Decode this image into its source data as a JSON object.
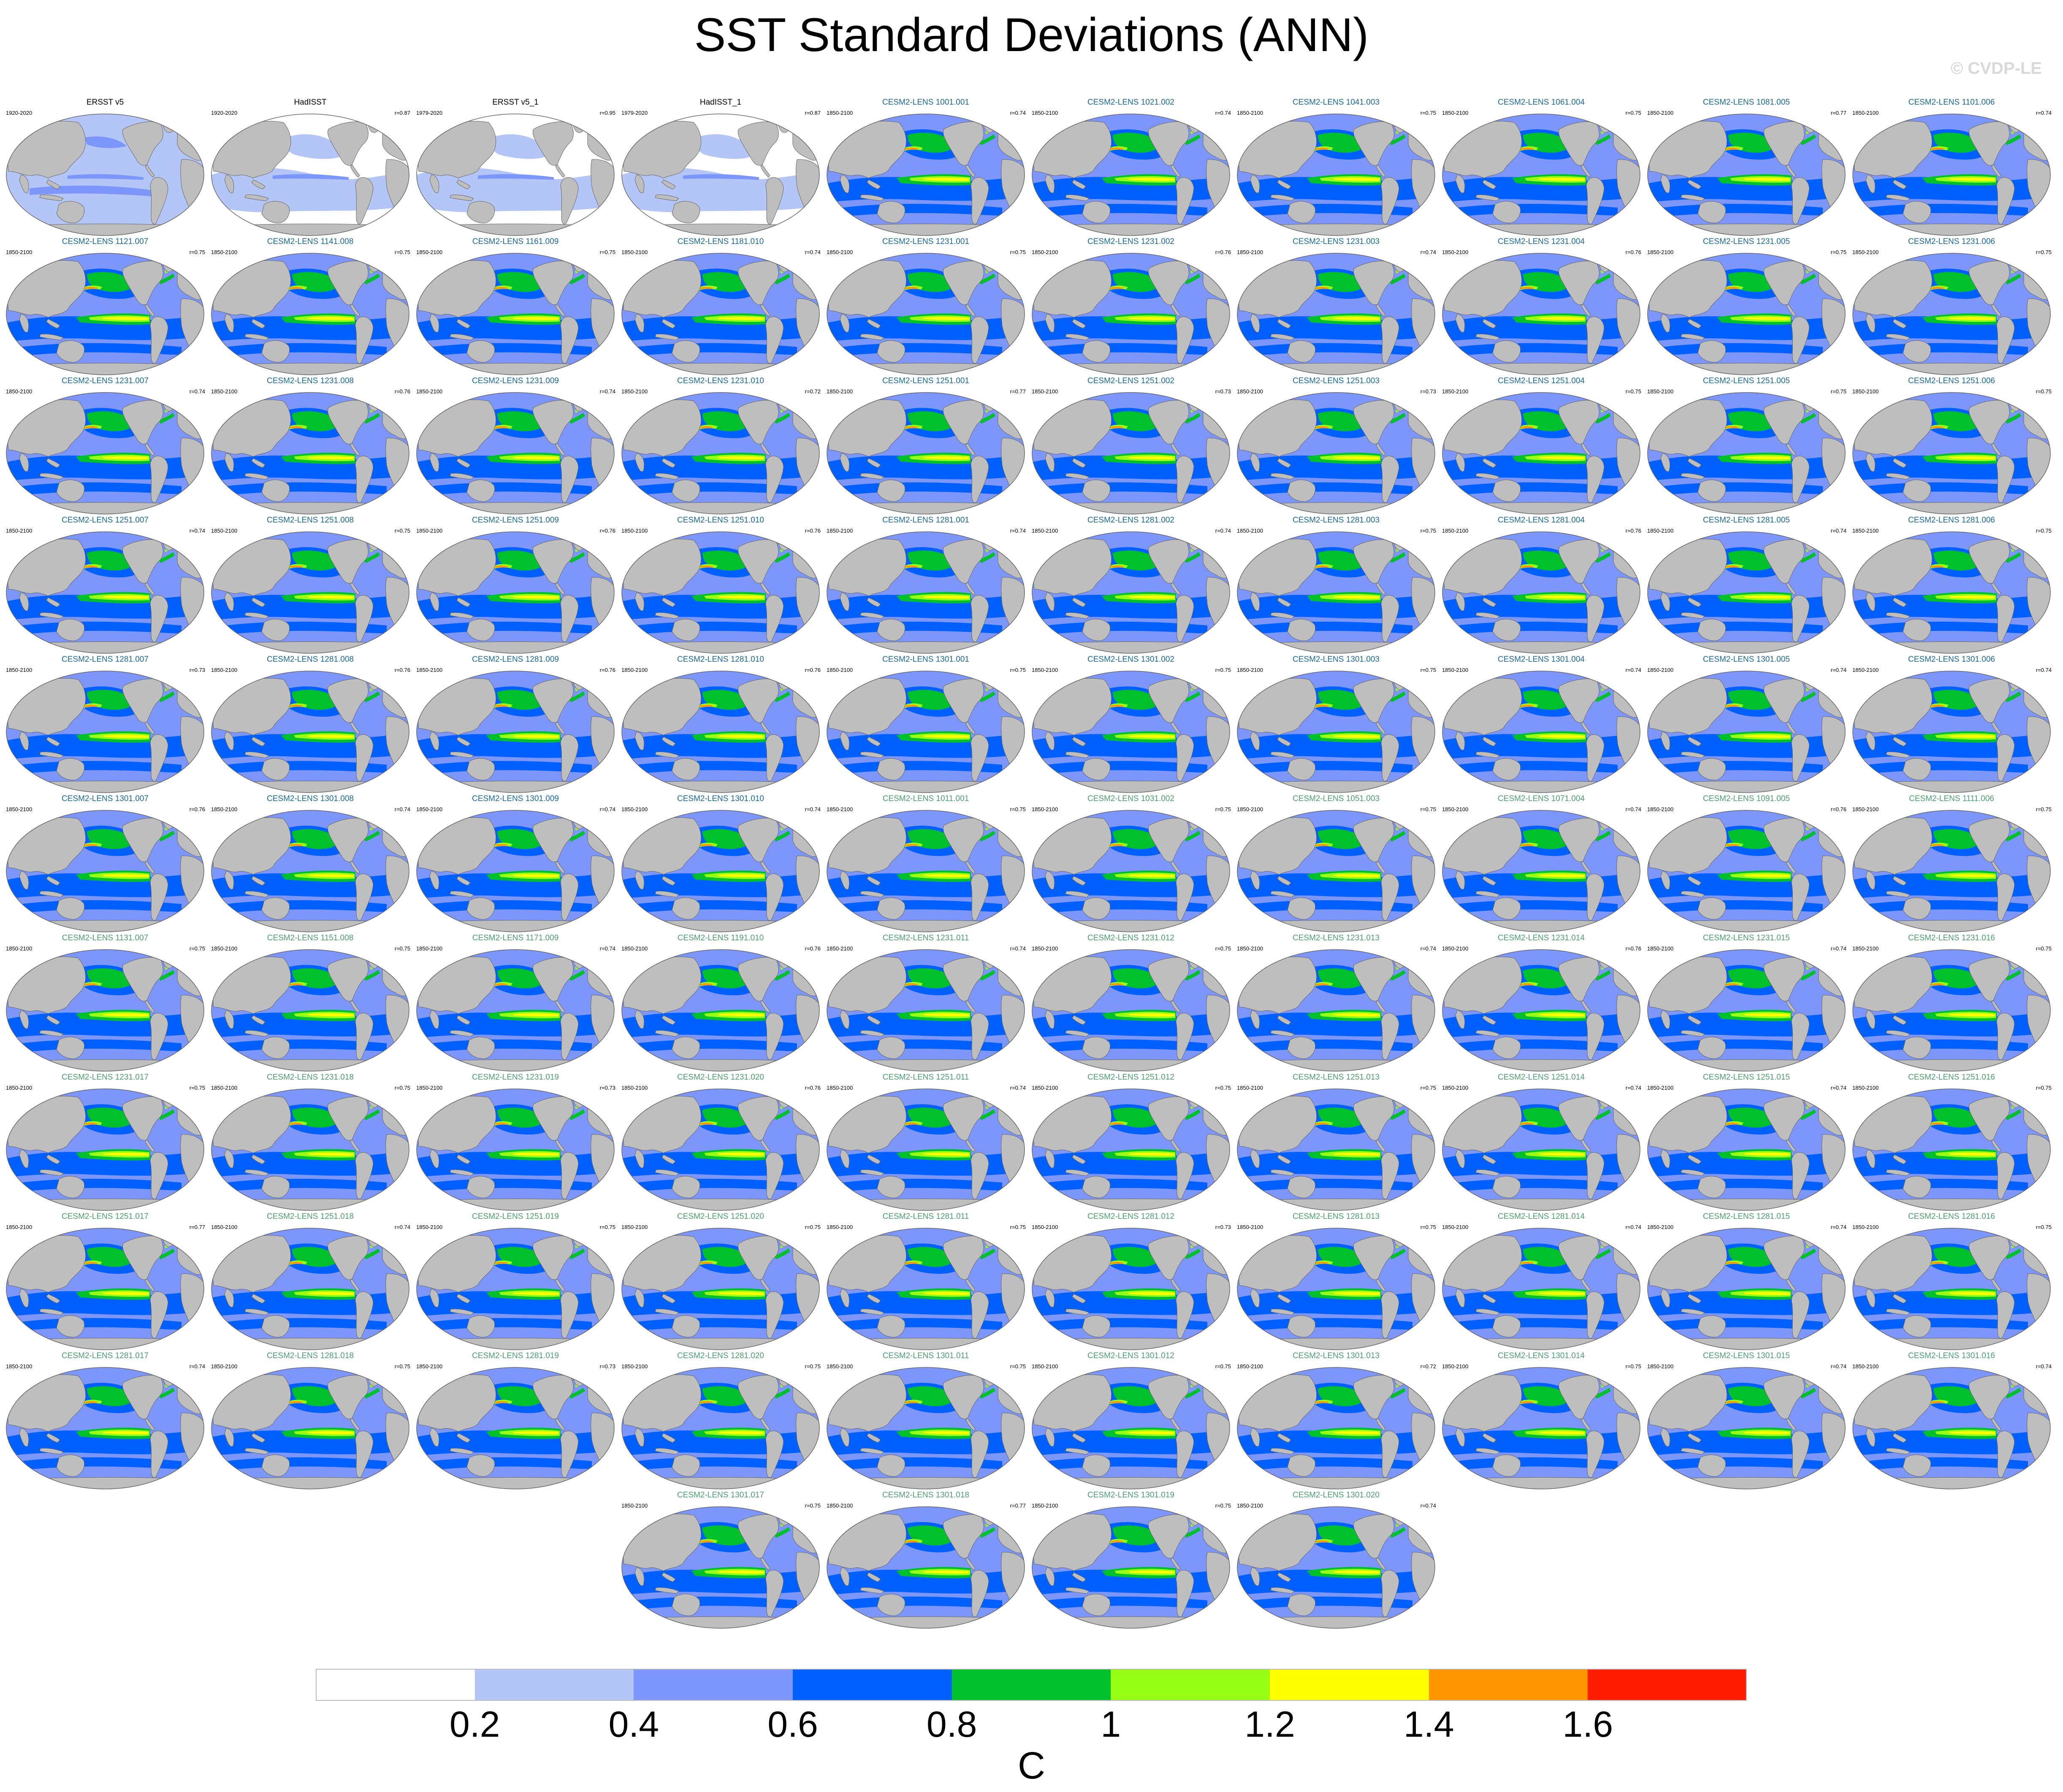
{
  "title": "SST Standard Deviations (ANN)",
  "watermark": "© CVDP-LE",
  "colors": {
    "ocean_bins": [
      "#ffffff",
      "#b4c6f8",
      "#7d96fc",
      "#0060ff",
      "#00c12b",
      "#96ff15",
      "#ffff00",
      "#ff9600",
      "#ff1c00"
    ],
    "land": "#bebebe",
    "outline": "#666666",
    "obs_title": "#000000",
    "series_1_title": "#1a6a96",
    "series_2_title": "#4c9e72"
  },
  "colorbar": {
    "label": "C",
    "tick_labels": [
      "0.2",
      "0.4",
      "0.6",
      "0.8",
      "1",
      "1.2",
      "1.4",
      "1.6"
    ],
    "bin_colors": [
      "#ffffff",
      "#b4c6f8",
      "#7d96fc",
      "#0060ff",
      "#00c12b",
      "#96ff15",
      "#ffff00",
      "#ff9600",
      "#ff1c00"
    ]
  },
  "panels": [
    {
      "name": "ERSST v5",
      "period": "1920-2020",
      "r": "",
      "kind": "obs"
    },
    {
      "name": "HadISST",
      "period": "1920-2020",
      "r": "r=0.87",
      "kind": "obs"
    },
    {
      "name": "ERSST v5_1",
      "period": "1979-2020",
      "r": "r=0.95",
      "kind": "obs"
    },
    {
      "name": "HadISST_1",
      "period": "1979-2020",
      "r": "r=0.87",
      "kind": "obs"
    },
    {
      "name": "CESM2-LENS 1001.001",
      "period": "1850-2100",
      "r": "r=0.74",
      "kind": "m1"
    },
    {
      "name": "CESM2-LENS 1021.002",
      "period": "1850-2100",
      "r": "r=0.74",
      "kind": "m1"
    },
    {
      "name": "CESM2-LENS 1041.003",
      "period": "1850-2100",
      "r": "r=0.75",
      "kind": "m1"
    },
    {
      "name": "CESM2-LENS 1061.004",
      "period": "1850-2100",
      "r": "r=0.75",
      "kind": "m1"
    },
    {
      "name": "CESM2-LENS 1081.005",
      "period": "1850-2100",
      "r": "r=0.77",
      "kind": "m1"
    },
    {
      "name": "CESM2-LENS 1101.006",
      "period": "1850-2100",
      "r": "r=0.74",
      "kind": "m1"
    },
    {
      "name": "CESM2-LENS 1121.007",
      "period": "1850-2100",
      "r": "r=0.75",
      "kind": "m1"
    },
    {
      "name": "CESM2-LENS 1141.008",
      "period": "1850-2100",
      "r": "r=0.75",
      "kind": "m1"
    },
    {
      "name": "CESM2-LENS 1161.009",
      "period": "1850-2100",
      "r": "r=0.75",
      "kind": "m1"
    },
    {
      "name": "CESM2-LENS 1181.010",
      "period": "1850-2100",
      "r": "r=0.74",
      "kind": "m1"
    },
    {
      "name": "CESM2-LENS 1231.001",
      "period": "1850-2100",
      "r": "r=0.75",
      "kind": "m1"
    },
    {
      "name": "CESM2-LENS 1231.002",
      "period": "1850-2100",
      "r": "r=0.76",
      "kind": "m1"
    },
    {
      "name": "CESM2-LENS 1231.003",
      "period": "1850-2100",
      "r": "r=0.74",
      "kind": "m1"
    },
    {
      "name": "CESM2-LENS 1231.004",
      "period": "1850-2100",
      "r": "r=0.76",
      "kind": "m1"
    },
    {
      "name": "CESM2-LENS 1231.005",
      "period": "1850-2100",
      "r": "r=0.75",
      "kind": "m1"
    },
    {
      "name": "CESM2-LENS 1231.006",
      "period": "1850-2100",
      "r": "r=0.75",
      "kind": "m1"
    },
    {
      "name": "CESM2-LENS 1231.007",
      "period": "1850-2100",
      "r": "r=0.74",
      "kind": "m1"
    },
    {
      "name": "CESM2-LENS 1231.008",
      "period": "1850-2100",
      "r": "r=0.76",
      "kind": "m1"
    },
    {
      "name": "CESM2-LENS 1231.009",
      "period": "1850-2100",
      "r": "r=0.74",
      "kind": "m1"
    },
    {
      "name": "CESM2-LENS 1231.010",
      "period": "1850-2100",
      "r": "r=0.72",
      "kind": "m1"
    },
    {
      "name": "CESM2-LENS 1251.001",
      "period": "1850-2100",
      "r": "r=0.77",
      "kind": "m1"
    },
    {
      "name": "CESM2-LENS 1251.002",
      "period": "1850-2100",
      "r": "r=0.73",
      "kind": "m1"
    },
    {
      "name": "CESM2-LENS 1251.003",
      "period": "1850-2100",
      "r": "r=0.73",
      "kind": "m1"
    },
    {
      "name": "CESM2-LENS 1251.004",
      "period": "1850-2100",
      "r": "r=0.75",
      "kind": "m1"
    },
    {
      "name": "CESM2-LENS 1251.005",
      "period": "1850-2100",
      "r": "r=0.75",
      "kind": "m1"
    },
    {
      "name": "CESM2-LENS 1251.006",
      "period": "1850-2100",
      "r": "r=0.75",
      "kind": "m1"
    },
    {
      "name": "CESM2-LENS 1251.007",
      "period": "1850-2100",
      "r": "r=0.74",
      "kind": "m1"
    },
    {
      "name": "CESM2-LENS 1251.008",
      "period": "1850-2100",
      "r": "r=0.75",
      "kind": "m1"
    },
    {
      "name": "CESM2-LENS 1251.009",
      "period": "1850-2100",
      "r": "r=0.76",
      "kind": "m1"
    },
    {
      "name": "CESM2-LENS 1251.010",
      "period": "1850-2100",
      "r": "r=0.76",
      "kind": "m1"
    },
    {
      "name": "CESM2-LENS 1281.001",
      "period": "1850-2100",
      "r": "r=0.74",
      "kind": "m1"
    },
    {
      "name": "CESM2-LENS 1281.002",
      "period": "1850-2100",
      "r": "r=0.74",
      "kind": "m1"
    },
    {
      "name": "CESM2-LENS 1281.003",
      "period": "1850-2100",
      "r": "r=0.75",
      "kind": "m1"
    },
    {
      "name": "CESM2-LENS 1281.004",
      "period": "1850-2100",
      "r": "r=0.76",
      "kind": "m1"
    },
    {
      "name": "CESM2-LENS 1281.005",
      "period": "1850-2100",
      "r": "r=0.74",
      "kind": "m1"
    },
    {
      "name": "CESM2-LENS 1281.006",
      "period": "1850-2100",
      "r": "r=0.75",
      "kind": "m1"
    },
    {
      "name": "CESM2-LENS 1281.007",
      "period": "1850-2100",
      "r": "r=0.73",
      "kind": "m1"
    },
    {
      "name": "CESM2-LENS 1281.008",
      "period": "1850-2100",
      "r": "r=0.76",
      "kind": "m1"
    },
    {
      "name": "CESM2-LENS 1281.009",
      "period": "1850-2100",
      "r": "r=0.76",
      "kind": "m1"
    },
    {
      "name": "CESM2-LENS 1281.010",
      "period": "1850-2100",
      "r": "r=0.76",
      "kind": "m1"
    },
    {
      "name": "CESM2-LENS 1301.001",
      "period": "1850-2100",
      "r": "r=0.75",
      "kind": "m1"
    },
    {
      "name": "CESM2-LENS 1301.002",
      "period": "1850-2100",
      "r": "r=0.75",
      "kind": "m1"
    },
    {
      "name": "CESM2-LENS 1301.003",
      "period": "1850-2100",
      "r": "r=0.75",
      "kind": "m1"
    },
    {
      "name": "CESM2-LENS 1301.004",
      "period": "1850-2100",
      "r": "r=0.74",
      "kind": "m1"
    },
    {
      "name": "CESM2-LENS 1301.005",
      "period": "1850-2100",
      "r": "r=0.74",
      "kind": "m1"
    },
    {
      "name": "CESM2-LENS 1301.006",
      "period": "1850-2100",
      "r": "r=0.74",
      "kind": "m1"
    },
    {
      "name": "CESM2-LENS 1301.007",
      "period": "1850-2100",
      "r": "r=0.76",
      "kind": "m1"
    },
    {
      "name": "CESM2-LENS 1301.008",
      "period": "1850-2100",
      "r": "r=0.74",
      "kind": "m1"
    },
    {
      "name": "CESM2-LENS 1301.009",
      "period": "1850-2100",
      "r": "r=0.74",
      "kind": "m1"
    },
    {
      "name": "CESM2-LENS 1301.010",
      "period": "1850-2100",
      "r": "r=0.74",
      "kind": "m1"
    },
    {
      "name": "CESM2-LENS 1011.001",
      "period": "1850-2100",
      "r": "r=0.75",
      "kind": "m2"
    },
    {
      "name": "CESM2-LENS 1031.002",
      "period": "1850-2100",
      "r": "r=0.75",
      "kind": "m2"
    },
    {
      "name": "CESM2-LENS 1051.003",
      "period": "1850-2100",
      "r": "r=0.75",
      "kind": "m2"
    },
    {
      "name": "CESM2-LENS 1071.004",
      "period": "1850-2100",
      "r": "r=0.74",
      "kind": "m2"
    },
    {
      "name": "CESM2-LENS 1091.005",
      "period": "1850-2100",
      "r": "r=0.76",
      "kind": "m2"
    },
    {
      "name": "CESM2-LENS 1111.006",
      "period": "1850-2100",
      "r": "r=0.75",
      "kind": "m2"
    },
    {
      "name": "CESM2-LENS 1131.007",
      "period": "1850-2100",
      "r": "r=0.75",
      "kind": "m2"
    },
    {
      "name": "CESM2-LENS 1151.008",
      "period": "1850-2100",
      "r": "r=0.75",
      "kind": "m2"
    },
    {
      "name": "CESM2-LENS 1171.009",
      "period": "1850-2100",
      "r": "r=0.74",
      "kind": "m2"
    },
    {
      "name": "CESM2-LENS 1191.010",
      "period": "1850-2100",
      "r": "r=0.76",
      "kind": "m2"
    },
    {
      "name": "CESM2-LENS 1231.011",
      "period": "1850-2100",
      "r": "r=0.74",
      "kind": "m2"
    },
    {
      "name": "CESM2-LENS 1231.012",
      "period": "1850-2100",
      "r": "r=0.75",
      "kind": "m2"
    },
    {
      "name": "CESM2-LENS 1231.013",
      "period": "1850-2100",
      "r": "r=0.74",
      "kind": "m2"
    },
    {
      "name": "CESM2-LENS 1231.014",
      "period": "1850-2100",
      "r": "r=0.76",
      "kind": "m2"
    },
    {
      "name": "CESM2-LENS 1231.015",
      "period": "1850-2100",
      "r": "r=0.74",
      "kind": "m2"
    },
    {
      "name": "CESM2-LENS 1231.016",
      "period": "1850-2100",
      "r": "r=0.75",
      "kind": "m2"
    },
    {
      "name": "CESM2-LENS 1231.017",
      "period": "1850-2100",
      "r": "r=0.75",
      "kind": "m2"
    },
    {
      "name": "CESM2-LENS 1231.018",
      "period": "1850-2100",
      "r": "r=0.75",
      "kind": "m2"
    },
    {
      "name": "CESM2-LENS 1231.019",
      "period": "1850-2100",
      "r": "r=0.73",
      "kind": "m2"
    },
    {
      "name": "CESM2-LENS 1231.020",
      "period": "1850-2100",
      "r": "r=0.76",
      "kind": "m2"
    },
    {
      "name": "CESM2-LENS 1251.011",
      "period": "1850-2100",
      "r": "r=0.74",
      "kind": "m2"
    },
    {
      "name": "CESM2-LENS 1251.012",
      "period": "1850-2100",
      "r": "r=0.75",
      "kind": "m2"
    },
    {
      "name": "CESM2-LENS 1251.013",
      "period": "1850-2100",
      "r": "r=0.75",
      "kind": "m2"
    },
    {
      "name": "CESM2-LENS 1251.014",
      "period": "1850-2100",
      "r": "r=0.74",
      "kind": "m2"
    },
    {
      "name": "CESM2-LENS 1251.015",
      "period": "1850-2100",
      "r": "r=0.74",
      "kind": "m2"
    },
    {
      "name": "CESM2-LENS 1251.016",
      "period": "1850-2100",
      "r": "r=0.75",
      "kind": "m2"
    },
    {
      "name": "CESM2-LENS 1251.017",
      "period": "1850-2100",
      "r": "r=0.77",
      "kind": "m2"
    },
    {
      "name": "CESM2-LENS 1251.018",
      "period": "1850-2100",
      "r": "r=0.74",
      "kind": "m2"
    },
    {
      "name": "CESM2-LENS 1251.019",
      "period": "1850-2100",
      "r": "r=0.75",
      "kind": "m2"
    },
    {
      "name": "CESM2-LENS 1251.020",
      "period": "1850-2100",
      "r": "r=0.75",
      "kind": "m2"
    },
    {
      "name": "CESM2-LENS 1281.011",
      "period": "1850-2100",
      "r": "r=0.75",
      "kind": "m2"
    },
    {
      "name": "CESM2-LENS 1281.012",
      "period": "1850-2100",
      "r": "r=0.73",
      "kind": "m2"
    },
    {
      "name": "CESM2-LENS 1281.013",
      "period": "1850-2100",
      "r": "r=0.75",
      "kind": "m2"
    },
    {
      "name": "CESM2-LENS 1281.014",
      "period": "1850-2100",
      "r": "r=0.74",
      "kind": "m2"
    },
    {
      "name": "CESM2-LENS 1281.015",
      "period": "1850-2100",
      "r": "r=0.74",
      "kind": "m2"
    },
    {
      "name": "CESM2-LENS 1281.016",
      "period": "1850-2100",
      "r": "r=0.75",
      "kind": "m2"
    },
    {
      "name": "CESM2-LENS 1281.017",
      "period": "1850-2100",
      "r": "r=0.74",
      "kind": "m2"
    },
    {
      "name": "CESM2-LENS 1281.018",
      "period": "1850-2100",
      "r": "r=0.75",
      "kind": "m2"
    },
    {
      "name": "CESM2-LENS 1281.019",
      "period": "1850-2100",
      "r": "r=0.73",
      "kind": "m2"
    },
    {
      "name": "CESM2-LENS 1281.020",
      "period": "1850-2100",
      "r": "r=0.75",
      "kind": "m2"
    },
    {
      "name": "CESM2-LENS 1301.011",
      "period": "1850-2100",
      "r": "r=0.75",
      "kind": "m2"
    },
    {
      "name": "CESM2-LENS 1301.012",
      "period": "1850-2100",
      "r": "r=0.75",
      "kind": "m2"
    },
    {
      "name": "CESM2-LENS 1301.013",
      "period": "1850-2100",
      "r": "r=0.72",
      "kind": "m2"
    },
    {
      "name": "CESM2-LENS 1301.014",
      "period": "1850-2100",
      "r": "r=0.75",
      "kind": "m2"
    },
    {
      "name": "CESM2-LENS 1301.015",
      "period": "1850-2100",
      "r": "r=0.74",
      "kind": "m2"
    },
    {
      "name": "CESM2-LENS 1301.016",
      "period": "1850-2100",
      "r": "r=0.74",
      "kind": "m2"
    },
    {
      "name": "CESM2-LENS 1301.017",
      "period": "1850-2100",
      "r": "r=0.75",
      "kind": "m2"
    },
    {
      "name": "CESM2-LENS 1301.018",
      "period": "1850-2100",
      "r": "r=0.77",
      "kind": "m2"
    },
    {
      "name": "CESM2-LENS 1301.019",
      "period": "1850-2100",
      "r": "r=0.75",
      "kind": "m2"
    },
    {
      "name": "CESM2-LENS 1301.020",
      "period": "1850-2100",
      "r": "r=0.74",
      "kind": "m2"
    }
  ]
}
